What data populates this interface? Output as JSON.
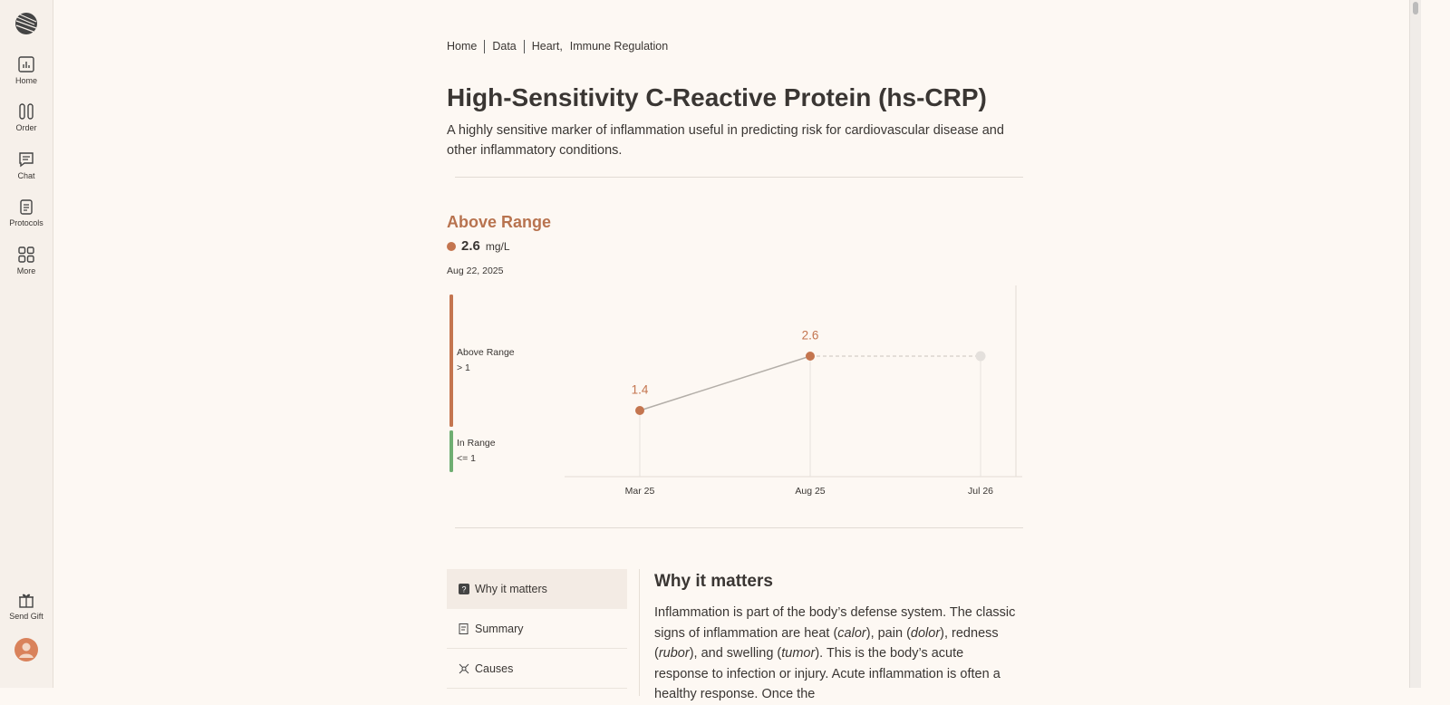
{
  "sidebar": {
    "items": [
      "Home",
      "Order",
      "Chat",
      "Protocols",
      "More"
    ],
    "footer": "Send Gift"
  },
  "breadcrumb": [
    "Home",
    "Data",
    "Heart,",
    "Immune Regulation"
  ],
  "header": {
    "title": "High-Sensitivity C-Reactive Protein (hs-CRP)",
    "description": "A highly sensitive marker of inflammation useful in predicting risk for cardiovascular disease and other inflammatory conditions."
  },
  "current": {
    "status": "Above Range",
    "value": 2.6,
    "unit": "mg/L",
    "date": "Aug 22, 2025"
  },
  "chart_data": {
    "type": "line",
    "categories": [
      "Mar 25",
      "Aug 25",
      "Jul 26"
    ],
    "values": [
      1.4,
      2.6,
      null
    ],
    "forecast": [
      null,
      2.6,
      2.6
    ],
    "color": "#c4754f",
    "ylim": [
      0,
      4
    ],
    "ranges": [
      {
        "label": "Above Range",
        "rule": "> 1",
        "min": 1,
        "max": 4,
        "color": "#c4754f"
      },
      {
        "label": "In Range",
        "rule": "<= 1",
        "min": 0,
        "max": 1,
        "color": "#6fae72"
      }
    ]
  },
  "tabs": [
    "Why it matters",
    "Summary",
    "Causes"
  ],
  "section": {
    "heading": "Why it matters",
    "paragraph": [
      "Inflammation is part of the body’s defense system. The classic signs of inflammation are heat (",
      "calor",
      "), pain (",
      "dolor",
      "), redness (",
      "rubor",
      "), and swelling (",
      "tumor",
      "). This is the body’s acute response to infection or injury. Acute inflammation is often a healthy response. Once the"
    ]
  }
}
